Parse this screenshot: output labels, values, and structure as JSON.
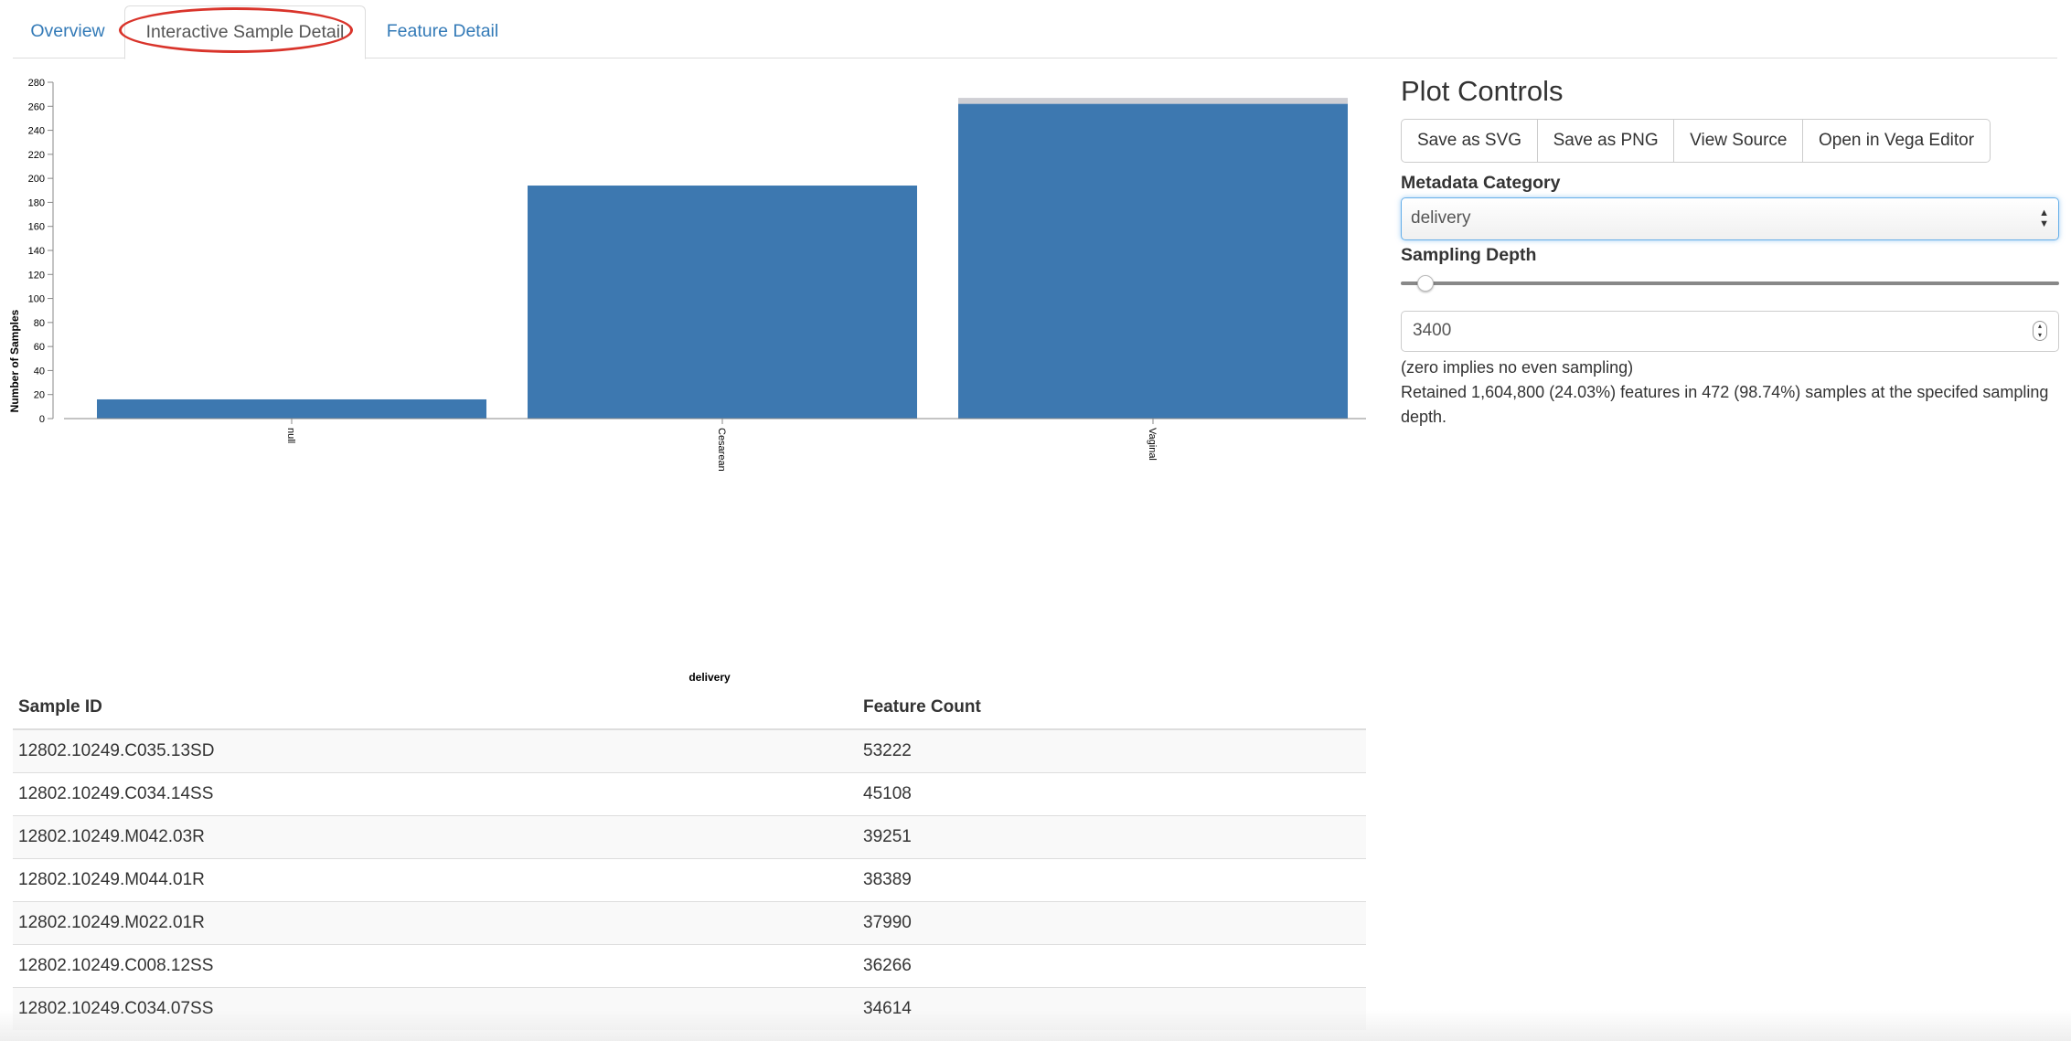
{
  "tabs": [
    {
      "label": "Overview"
    },
    {
      "label": "Interactive Sample Detail"
    },
    {
      "label": "Feature Detail"
    }
  ],
  "chart_data": {
    "type": "bar",
    "categories": [
      "null",
      "Cesarean",
      "Vaginal"
    ],
    "values": [
      16,
      194,
      262
    ],
    "stack_remainder": [
      0,
      0,
      5
    ],
    "xlabel": "delivery",
    "ylabel": "Number of Samples",
    "ylim": [
      0,
      280
    ],
    "yticks": [
      0,
      20,
      40,
      60,
      80,
      100,
      120,
      140,
      160,
      180,
      200,
      220,
      240,
      260,
      280
    ],
    "grid": false,
    "colors": {
      "bar": "#3d78b0",
      "remainder": "#cfcfd4"
    }
  },
  "table": {
    "headers": [
      "Sample ID",
      "Feature Count"
    ],
    "rows": [
      [
        "12802.10249.C035.13SD",
        "53222"
      ],
      [
        "12802.10249.C034.14SS",
        "45108"
      ],
      [
        "12802.10249.M042.03R",
        "39251"
      ],
      [
        "12802.10249.M044.01R",
        "38389"
      ],
      [
        "12802.10249.M022.01R",
        "37990"
      ],
      [
        "12802.10249.C008.12SS",
        "36266"
      ],
      [
        "12802.10249.C034.07SS",
        "34614"
      ]
    ]
  },
  "controls": {
    "title": "Plot Controls",
    "buttons": [
      "Save as SVG",
      "Save as PNG",
      "View Source",
      "Open in Vega Editor"
    ],
    "metadata_label": "Metadata Category",
    "metadata_value": "delivery",
    "depth_label": "Sampling Depth",
    "depth_slider_fraction": 0.025,
    "depth_value": "3400",
    "zero_note": "(zero implies no even sampling)",
    "retained_text": "Retained 1,604,800 (24.03%) features in 472 (98.74%) samples at the specifed sampling depth."
  },
  "icons": {
    "select_arrows": "up-down-arrows-icon",
    "stepper": "number-stepper-icon"
  }
}
